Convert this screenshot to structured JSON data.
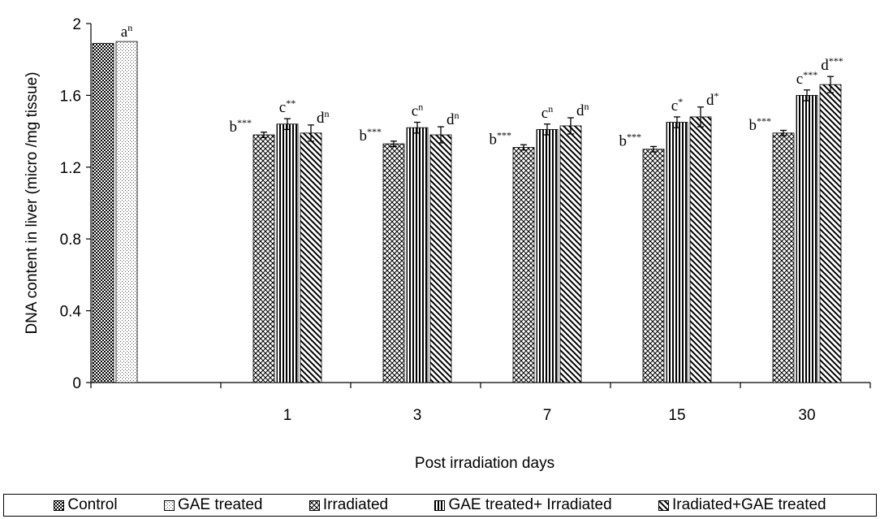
{
  "chart_data": {
    "type": "bar",
    "xlabel": "Post irradiation days",
    "ylabel": "DNA content in liver (micro /mg tissue)",
    "ylim": [
      0,
      2
    ],
    "yticks": [
      "0",
      "0.4",
      "0.8",
      "1.2",
      "1.6",
      "2"
    ],
    "grid": false,
    "legend_position": "bottom",
    "categories": [
      "",
      "1",
      "3",
      "7",
      "15",
      "30"
    ],
    "series": [
      {
        "name": "Control",
        "pattern": "dots-dense",
        "values": [
          1.89,
          null,
          null,
          null,
          null,
          null
        ],
        "errors": [
          0,
          null,
          null,
          null,
          null,
          null
        ],
        "labels": [
          "",
          "",
          "",
          "",
          "",
          ""
        ]
      },
      {
        "name": "GAE treated",
        "pattern": "dots-light",
        "values": [
          1.9,
          null,
          null,
          null,
          null,
          null
        ],
        "errors": [
          0,
          null,
          null,
          null,
          null,
          null
        ],
        "labels": [
          "a|n",
          "",
          "",
          "",
          "",
          ""
        ]
      },
      {
        "name": "Irradiated",
        "pattern": "crosshatch",
        "values": [
          null,
          1.38,
          1.33,
          1.31,
          1.3,
          1.39
        ],
        "errors": [
          null,
          0.015,
          0.015,
          0.015,
          0.015,
          0.015
        ],
        "labels": [
          "",
          "b|***",
          "b|***",
          "b|***",
          "b|***",
          "b|***"
        ]
      },
      {
        "name": "GAE treated+ Irradiated",
        "pattern": "vertical",
        "values": [
          null,
          1.44,
          1.42,
          1.41,
          1.45,
          1.6
        ],
        "errors": [
          null,
          0.03,
          0.03,
          0.03,
          0.03,
          0.03
        ],
        "labels": [
          "",
          "c|**",
          "c|n",
          "c|n",
          "c|*",
          "c|***"
        ]
      },
      {
        "name": "Iradiated+GAE treated",
        "pattern": "diagonal",
        "values": [
          null,
          1.39,
          1.38,
          1.43,
          1.48,
          1.66
        ],
        "errors": [
          null,
          0.045,
          0.045,
          0.045,
          0.055,
          0.045
        ],
        "labels": [
          "",
          "d|n",
          "d|n",
          "d|n",
          "d|*",
          "d|***"
        ]
      }
    ]
  }
}
